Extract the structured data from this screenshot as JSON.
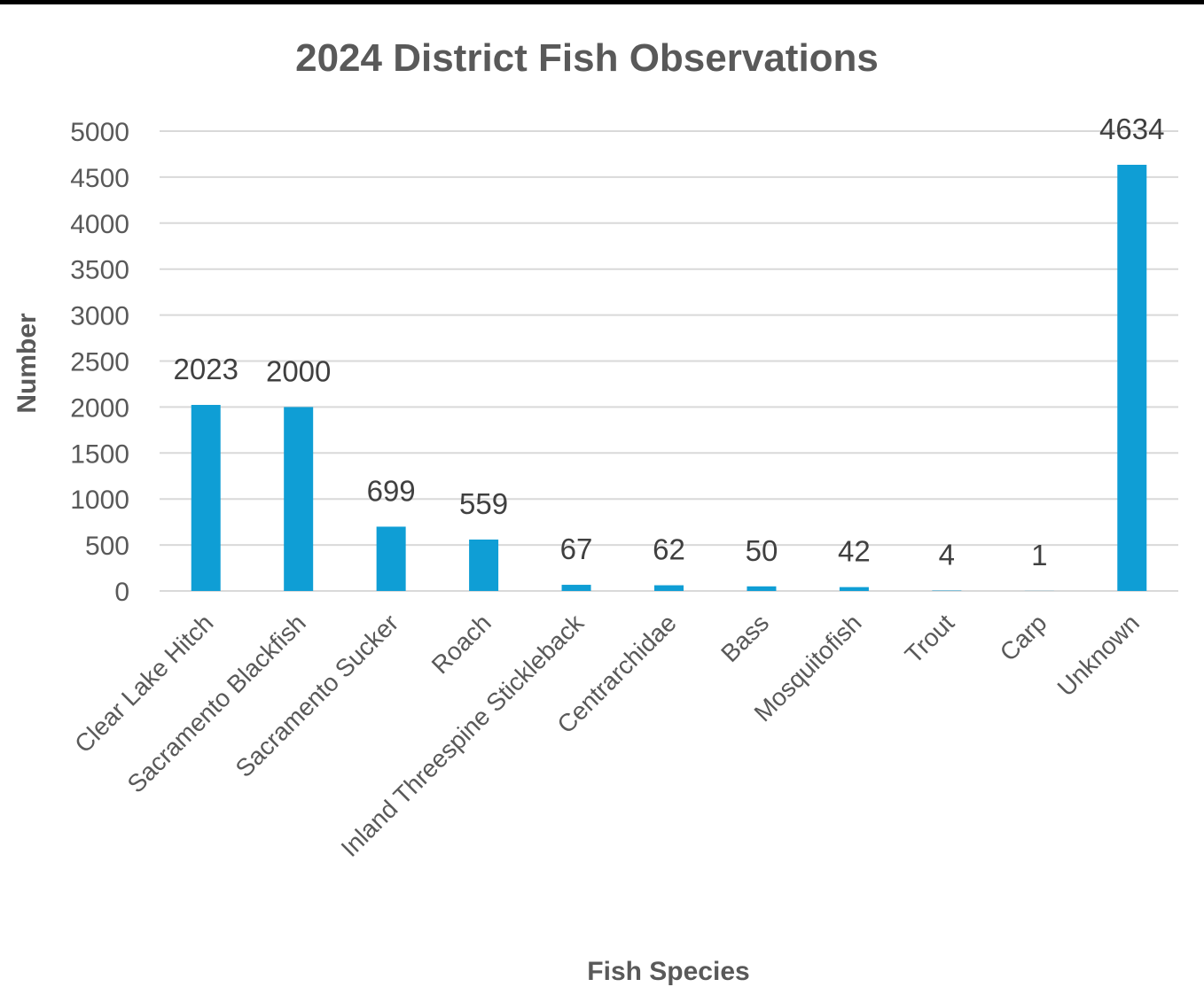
{
  "chart_data": {
    "type": "bar",
    "title": "2024 District Fish Observations",
    "xlabel": "Fish Species",
    "ylabel": "Number",
    "categories": [
      "Clear Lake Hitch",
      "Sacramento Blackfish",
      "Sacramento Sucker",
      "Roach",
      "Inland Threespine Stickleback",
      "Centrarchidae",
      "Bass",
      "Mosquitofish",
      "Trout",
      "Carp",
      "Unknown"
    ],
    "values": [
      2023,
      2000,
      699,
      559,
      67,
      62,
      50,
      42,
      4,
      1,
      4634
    ],
    "ylim": [
      0,
      5000
    ],
    "ytick_step": 500,
    "grid": true,
    "legend": "none",
    "data_labels": true,
    "bar_color": "#0f9ed5"
  }
}
